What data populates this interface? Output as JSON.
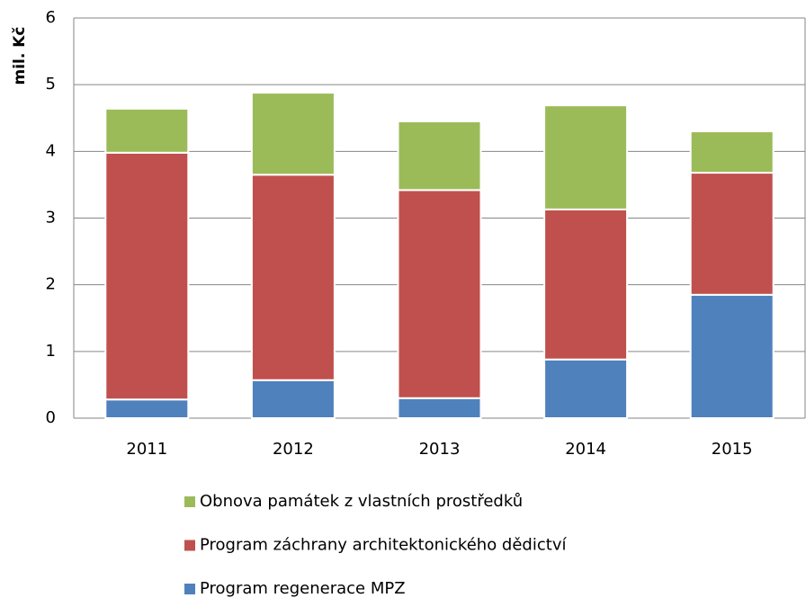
{
  "chart_data": {
    "type": "stacked_bar",
    "y_label": "mil. Kč",
    "categories": [
      "2011",
      "2012",
      "2013",
      "2014",
      "2015"
    ],
    "series": [
      {
        "name": "Program regenerace MPZ",
        "color": "#4f81bd",
        "values": [
          0.28,
          0.57,
          0.3,
          0.88,
          1.85
        ]
      },
      {
        "name": "Program záchrany architektonického dědictví",
        "color": "#c0504d",
        "values": [
          3.7,
          3.08,
          3.12,
          2.25,
          1.83
        ]
      },
      {
        "name": "Obnova památek z vlastních prostředků",
        "color": "#9bbb59",
        "values": [
          0.66,
          1.23,
          1.03,
          1.56,
          0.62
        ]
      }
    ],
    "ylim": [
      0,
      6
    ],
    "yticks": [
      0,
      1,
      2,
      3,
      4,
      5,
      6
    ],
    "grid": true,
    "legend": "bottom"
  }
}
